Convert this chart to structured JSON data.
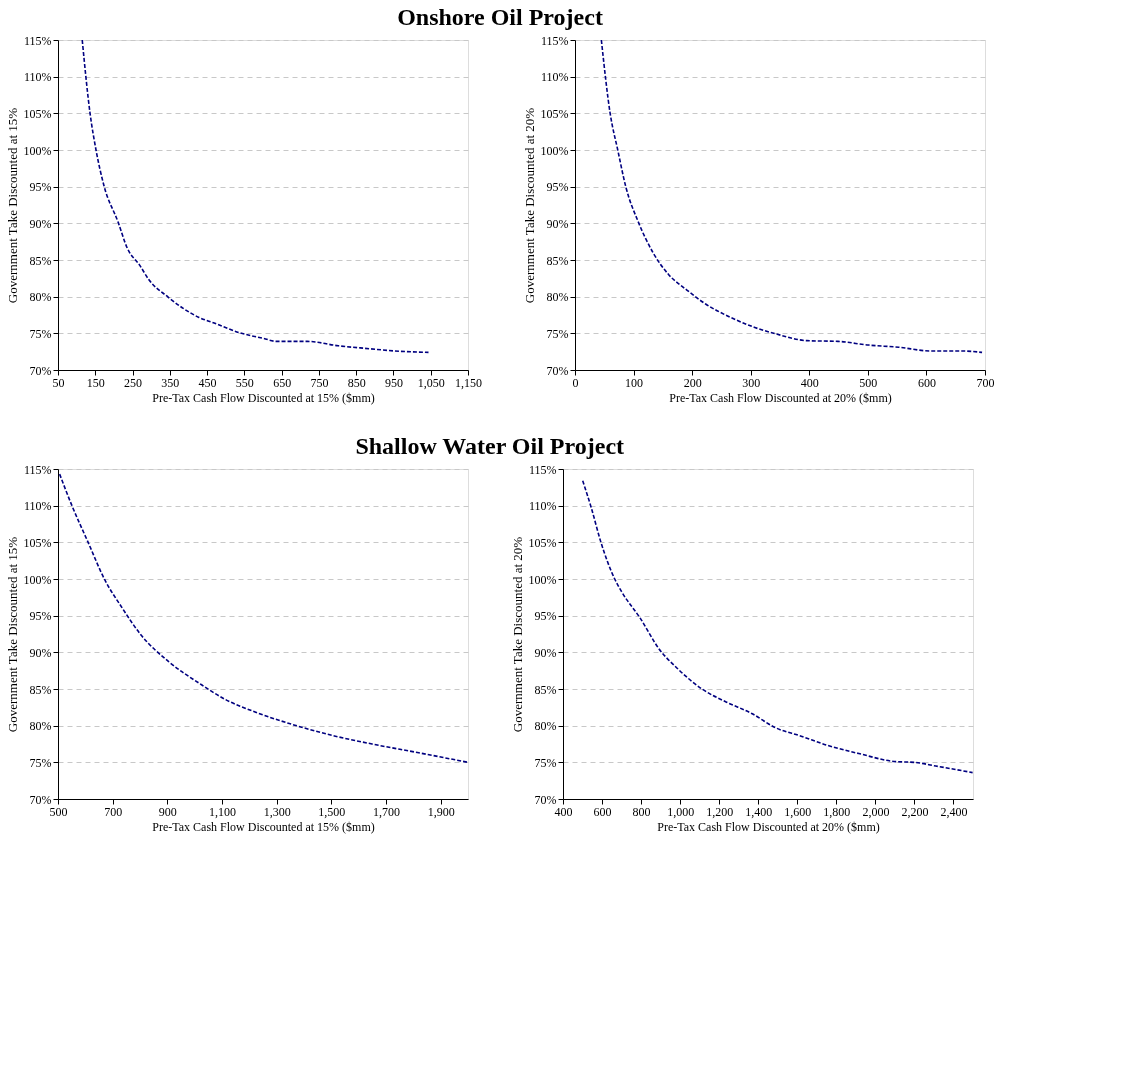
{
  "chart_data": [
    {
      "type": "line",
      "title": "Onshore Oil Project",
      "xlabel": "Pre-Tax Cash Flow Discounted at 15% ($mm)",
      "ylabel": "Government Take Discounted  at 15%",
      "line_style": "dashed",
      "grid": "y",
      "xlim": [
        50,
        1150
      ],
      "xticks": [
        50,
        150,
        250,
        350,
        450,
        550,
        650,
        750,
        850,
        950,
        {
          "value": 1050,
          "label": "1,050"
        },
        {
          "value": 1150,
          "label": "1,150"
        }
      ],
      "ylim": [
        70,
        115
      ],
      "yticks": [
        {
          "value": 70,
          "label": "70%"
        },
        {
          "value": 75,
          "label": "75%"
        },
        {
          "value": 80,
          "label": "80%"
        },
        {
          "value": 85,
          "label": "85%"
        },
        {
          "value": 90,
          "label": "90%"
        },
        {
          "value": 95,
          "label": "95%"
        },
        {
          "value": 100,
          "label": "100%"
        },
        {
          "value": 105,
          "label": "105%"
        },
        {
          "value": 110,
          "label": "110%"
        },
        {
          "value": 115,
          "label": "115%"
        }
      ],
      "x": [
        115,
        136,
        152,
        173,
        211,
        236,
        269,
        294,
        344,
        386,
        427,
        469,
        536,
        602,
        636,
        719,
        802,
        886,
        952,
        1044
      ],
      "series": [
        {
          "color": "#000080",
          "values": [
            115,
            105,
            100,
            95.2,
            90.2,
            86.6,
            84.3,
            82.3,
            80,
            78.4,
            77.2,
            76.4,
            75.1,
            74.3,
            73.9,
            73.9,
            73.3,
            72.9,
            72.6,
            72.4
          ]
        }
      ]
    },
    {
      "type": "line",
      "xlabel": "Pre-Tax Cash Flow Discounted at 20% ($mm)",
      "ylabel": "Government Take Discounted  at 20%",
      "line_style": "dashed",
      "grid": "y",
      "xlim": [
        0,
        700
      ],
      "xticks": [
        0,
        100,
        200,
        300,
        400,
        500,
        600,
        700
      ],
      "ylim": [
        70,
        115
      ],
      "yticks": [
        {
          "value": 70,
          "label": "70%"
        },
        {
          "value": 75,
          "label": "75%"
        },
        {
          "value": 80,
          "label": "80%"
        },
        {
          "value": 85,
          "label": "85%"
        },
        {
          "value": 90,
          "label": "90%"
        },
        {
          "value": 95,
          "label": "95%"
        },
        {
          "value": 100,
          "label": "100%"
        },
        {
          "value": 105,
          "label": "105%"
        },
        {
          "value": 110,
          "label": "110%"
        },
        {
          "value": 115,
          "label": "115%"
        }
      ],
      "x": [
        45,
        60,
        73,
        87,
        108,
        134,
        160,
        191,
        223,
        265,
        307,
        344,
        396,
        449,
        501,
        553,
        606,
        658,
        695
      ],
      "series": [
        {
          "color": "#000080",
          "values": [
            115,
            105,
            100,
            94.9,
            90.2,
            85.9,
            83,
            80.9,
            79,
            77.2,
            75.8,
            74.9,
            74,
            73.9,
            73.4,
            73.1,
            72.6,
            72.6,
            72.4
          ]
        }
      ]
    },
    {
      "type": "line",
      "title": "Shallow Water Oil Project",
      "xlabel": "Pre-Tax Cash Flow Discounted at 15% ($mm)",
      "ylabel": "Government Take Discounted  at 15%",
      "line_style": "dashed",
      "grid": "y",
      "xlim": [
        500,
        2000
      ],
      "xticks": [
        500,
        700,
        900,
        {
          "value": 1100,
          "label": "1,100"
        },
        {
          "value": 1300,
          "label": "1,300"
        },
        {
          "value": 1500,
          "label": "1,500"
        },
        {
          "value": 1700,
          "label": "1,700"
        },
        {
          "value": 1900,
          "label": "1,900"
        }
      ],
      "ylim": [
        70,
        115
      ],
      "yticks": [
        {
          "value": 70,
          "label": "70%"
        },
        {
          "value": 75,
          "label": "75%"
        },
        {
          "value": 80,
          "label": "80%"
        },
        {
          "value": 85,
          "label": "85%"
        },
        {
          "value": 90,
          "label": "90%"
        },
        {
          "value": 95,
          "label": "95%"
        },
        {
          "value": 100,
          "label": "100%"
        },
        {
          "value": 105,
          "label": "105%"
        },
        {
          "value": 110,
          "label": "110%"
        },
        {
          "value": 115,
          "label": "115%"
        }
      ],
      "x": [
        506,
        551,
        609,
        671,
        734,
        803,
        906,
        1020,
        1111,
        1226,
        1363,
        1511,
        1649,
        1820,
        2000
      ],
      "series": [
        {
          "color": "#000080",
          "values": [
            114.3,
            110,
            105.1,
            99.9,
            96.1,
            92.4,
            88.7,
            85.7,
            83.6,
            81.8,
            80.1,
            78.6,
            77.5,
            76.3,
            75
          ]
        }
      ]
    },
    {
      "type": "line",
      "xlabel": "Pre-Tax Cash Flow Discounted at 20% ($mm)",
      "ylabel": "Government Take Discounted  at 20%",
      "line_style": "dashed",
      "grid": "y",
      "xlim": [
        400,
        2500
      ],
      "xticks": [
        400,
        600,
        800,
        {
          "value": 1000,
          "label": "1,000"
        },
        {
          "value": 1200,
          "label": "1,200"
        },
        {
          "value": 1400,
          "label": "1,400"
        },
        {
          "value": 1600,
          "label": "1,600"
        },
        {
          "value": 1800,
          "label": "1,800"
        },
        {
          "value": 2000,
          "label": "2,000"
        },
        {
          "value": 2200,
          "label": "2,200"
        },
        {
          "value": 2400,
          "label": "2,400"
        }
      ],
      "ylim": [
        70,
        115
      ],
      "yticks": [
        {
          "value": 70,
          "label": "70%"
        },
        {
          "value": 75,
          "label": "75%"
        },
        {
          "value": 80,
          "label": "80%"
        },
        {
          "value": 85,
          "label": "85%"
        },
        {
          "value": 90,
          "label": "90%"
        },
        {
          "value": 95,
          "label": "95%"
        },
        {
          "value": 100,
          "label": "100%"
        },
        {
          "value": 105,
          "label": "105%"
        },
        {
          "value": 110,
          "label": "110%"
        },
        {
          "value": 115,
          "label": "115%"
        }
      ],
      "x": [
        501,
        545,
        592,
        663,
        702,
        797,
        891,
        986,
        1112,
        1238,
        1364,
        1490,
        1616,
        1757,
        1915,
        2104,
        2198,
        2309,
        2498
      ],
      "series": [
        {
          "color": "#000080",
          "values": [
            113.4,
            109.7,
            105.2,
            100.1,
            98.2,
            94.6,
            90.5,
            87.8,
            85,
            83.2,
            81.7,
            79.7,
            78.6,
            77.3,
            76.2,
            75.1,
            75,
            74.5,
            73.6
          ]
        }
      ]
    }
  ]
}
